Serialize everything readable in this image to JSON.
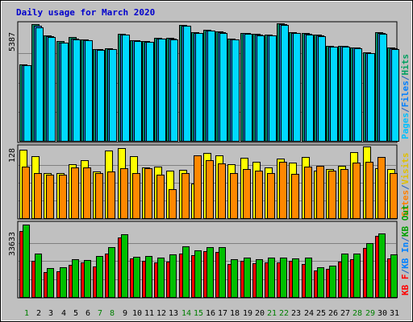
{
  "chart_data": {
    "type": "bar",
    "title": "Daily usage for March 2020",
    "categories": [
      "1",
      "2",
      "3",
      "4",
      "5",
      "6",
      "7",
      "8",
      "9",
      "10",
      "11",
      "12",
      "13",
      "14",
      "15",
      "16",
      "17",
      "18",
      "19",
      "20",
      "21",
      "22",
      "23",
      "24",
      "25",
      "26",
      "27",
      "28",
      "29",
      "30",
      "31"
    ],
    "weekend_days": [
      "1",
      "7",
      "8",
      "14",
      "15",
      "21",
      "22",
      "28",
      "29"
    ],
    "panels": [
      {
        "id": "hits-files-pages",
        "max_label": "5387",
        "ymax": 5387,
        "legend": [
          {
            "text": "Pages",
            "color": "#00c0ff"
          },
          {
            "text": "/",
            "color": "#2060c0"
          },
          {
            "text": "Files",
            "color": "#0080ff"
          },
          {
            "text": "/",
            "color": "#2060c0"
          },
          {
            "text": "Hits",
            "color": "#00a060"
          }
        ],
        "series": [
          {
            "name": "Hits",
            "color": "#008a66",
            "values": [
              3530,
              5387,
              4860,
              4620,
              4790,
              4690,
              4250,
              4280,
              4930,
              4660,
              4600,
              4760,
              4740,
              5340,
              5030,
              5140,
              5040,
              4720,
              4990,
              4940,
              4920,
              5430,
              5030,
              4970,
              4900,
              4370,
              4390,
              4320,
              4090,
              5000,
              4300
            ]
          },
          {
            "name": "Files",
            "color": "#2090ff",
            "values": [
              3510,
              5300,
              4830,
              4540,
              4700,
              4660,
              4230,
              4250,
              4910,
              4630,
              4570,
              4730,
              4700,
              5320,
              4990,
              5100,
              5000,
              4690,
              4960,
              4900,
              4880,
              5380,
              4980,
              4940,
              4860,
              4350,
              4370,
              4300,
              4060,
              4960,
              4270
            ]
          },
          {
            "name": "Pages",
            "color": "#00d8ff",
            "values": [
              3500,
              5240,
              4810,
              4520,
              4680,
              4640,
              4210,
              4240,
              4890,
              4610,
              4560,
              4710,
              4680,
              5300,
              4970,
              5090,
              4980,
              4670,
              4940,
              4880,
              4860,
              5360,
              4960,
              4920,
              4840,
              4330,
              4350,
              4280,
              4040,
              4940,
              4250
            ]
          }
        ]
      },
      {
        "id": "visits-sites",
        "max_label": "128",
        "ymax": 128,
        "legend": [
          {
            "text": "Sites",
            "color": "#ff8000"
          },
          {
            "text": "/",
            "color": "#2060c0"
          },
          {
            "text": "Visits",
            "color": "#e0c000"
          }
        ],
        "series": [
          {
            "name": "Visits",
            "color": "#ffff00",
            "values": [
              123,
              112,
              82,
              82,
              98,
              104,
              84,
              122,
              126,
              112,
              91,
              93,
              86,
              87,
              63,
              118,
              113,
              98,
              109,
              102,
              91,
              108,
              100,
              111,
              86,
              88,
              95,
              119,
              129,
              90,
              89
            ]
          },
          {
            "name": "Sites",
            "color": "#ff8800",
            "values": [
              93,
              81,
              78,
              79,
              91,
              91,
              82,
              84,
              90,
              81,
              90,
              79,
              52,
              81,
              114,
              105,
              99,
              81,
              89,
              86,
              82,
              102,
              80,
              93,
              94,
              86,
              88,
              100,
              102,
              110,
              81
            ]
          }
        ]
      },
      {
        "id": "kb-f-in-out",
        "max_label": "33633",
        "ymax": 33633,
        "legend": [
          {
            "text": "KB F",
            "color": "#ff0000"
          },
          {
            "text": "/",
            "color": "#2060c0"
          },
          {
            "text": "KB In",
            "color": "#0080ff"
          },
          {
            "text": "/",
            "color": "#2060c0"
          },
          {
            "text": "KB Out",
            "color": "#00a000"
          }
        ],
        "series": [
          {
            "name": "KB F",
            "color": "#ff0000",
            "values": [
              30500,
              16800,
              11400,
              11800,
              15000,
              16000,
              14100,
              20000,
              27600,
              18000,
              16700,
              16000,
              16400,
              20200,
              19400,
              21200,
              20900,
              15500,
              16900,
              15800,
              16000,
              16000,
              16800,
              15200,
              12200,
              13100,
              16300,
              17500,
              22900,
              28400,
              17900
            ]
          },
          {
            "name": "KB Out",
            "color": "#00c000",
            "values": [
              33633,
              20300,
              13400,
              13800,
              17400,
              17100,
              18900,
              23100,
              29300,
              18500,
              19200,
              18300,
              19700,
              23700,
              21700,
              23100,
              23100,
              17700,
              18300,
              17400,
              18300,
              18400,
              17900,
              18300,
              14000,
              14700,
              20000,
              20100,
              24900,
              29500,
              19700
            ]
          }
        ]
      }
    ],
    "grid": true
  }
}
